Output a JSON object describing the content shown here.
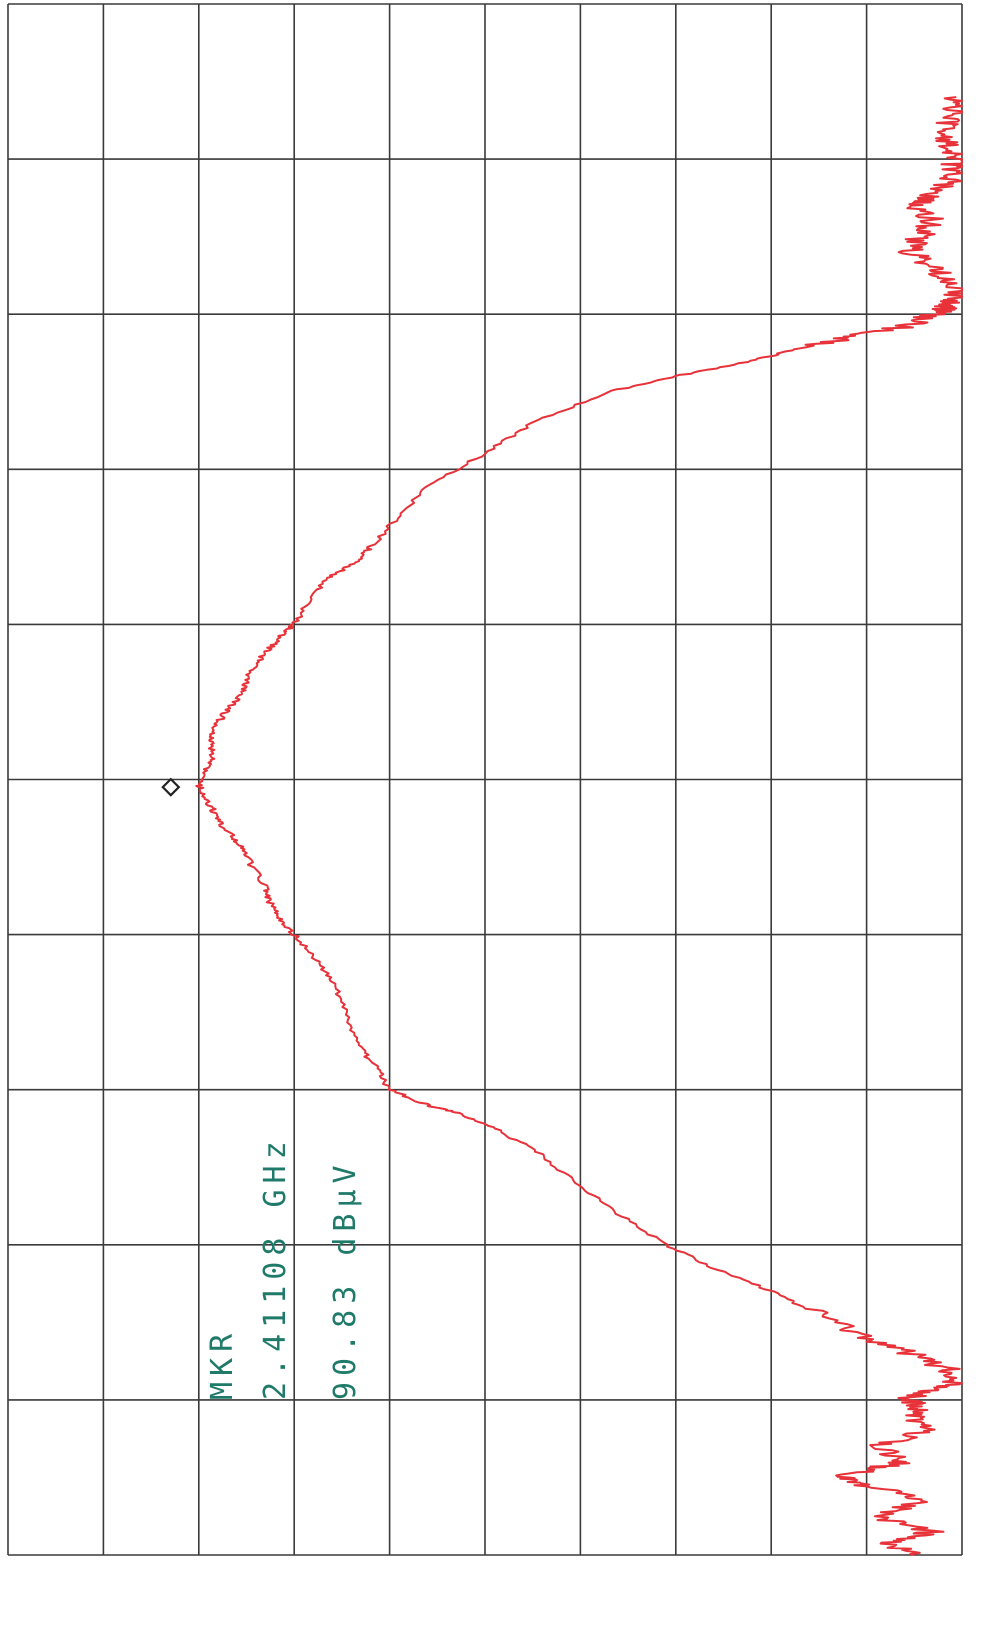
{
  "marker": {
    "label": "MKR",
    "frequency": "2.41108 GHz",
    "amplitude": "90.83 dBμV",
    "frequency_value_ghz": 2.41108,
    "amplitude_value_dbuv": 90.83
  },
  "colors": {
    "trace": "#e8323a",
    "grid": "#3a3a3a",
    "marker_text": "#1f7a6a",
    "marker_symbol": "#222222",
    "background": "#ffffff"
  },
  "chart_data": {
    "type": "line",
    "orientation": "rotated-90",
    "title": "",
    "xlabel": "",
    "ylabel": "",
    "grid": true,
    "grid_divisions": {
      "x": 10,
      "y": 10
    },
    "x_division_range": [
      0,
      10
    ],
    "y_division_range": [
      0,
      10
    ],
    "series": [
      {
        "name": "",
        "points": [
          [
            0.0,
            0.5
          ],
          [
            0.08,
            0.8
          ],
          [
            0.15,
            0.3
          ],
          [
            0.25,
            0.9
          ],
          [
            0.35,
            0.4
          ],
          [
            0.45,
            1.0
          ],
          [
            0.5,
            1.25
          ],
          [
            0.55,
            1.0
          ],
          [
            0.6,
            0.6
          ],
          [
            0.7,
            0.9
          ],
          [
            0.8,
            0.4
          ],
          [
            0.9,
            0.55
          ],
          [
            0.97,
            0.45
          ],
          [
            1.0,
            0.62
          ],
          [
            1.05,
            0.35
          ],
          [
            1.1,
            0.05
          ],
          [
            1.2,
            0.15
          ],
          [
            1.3,
            0.55
          ],
          [
            1.4,
            1.0
          ],
          [
            1.55,
            1.5
          ],
          [
            1.7,
            2.0
          ],
          [
            1.85,
            2.6
          ],
          [
            2.0,
            3.1
          ],
          [
            2.2,
            3.6
          ],
          [
            2.4,
            4.05
          ],
          [
            2.6,
            4.45
          ],
          [
            2.75,
            4.9
          ],
          [
            2.85,
            5.3
          ],
          [
            2.9,
            5.6
          ],
          [
            3.0,
            6.0
          ],
          [
            3.15,
            6.15
          ],
          [
            3.3,
            6.35
          ],
          [
            3.5,
            6.45
          ],
          [
            3.7,
            6.6
          ],
          [
            3.85,
            6.8
          ],
          [
            4.0,
            7.0
          ],
          [
            4.1,
            7.15
          ],
          [
            4.2,
            7.25
          ],
          [
            4.3,
            7.3
          ],
          [
            4.5,
            7.5
          ],
          [
            4.6,
            7.6
          ],
          [
            4.7,
            7.75
          ],
          [
            4.8,
            7.85
          ],
          [
            4.9,
            7.95
          ],
          [
            4.97,
            8.0
          ],
          [
            5.05,
            7.95
          ],
          [
            5.15,
            7.85
          ],
          [
            5.25,
            7.88
          ],
          [
            5.35,
            7.82
          ],
          [
            5.45,
            7.7
          ],
          [
            5.55,
            7.55
          ],
          [
            5.65,
            7.5
          ],
          [
            5.75,
            7.4
          ],
          [
            5.85,
            7.25
          ],
          [
            5.95,
            7.1
          ],
          [
            6.0,
            7.0
          ],
          [
            6.15,
            6.85
          ],
          [
            6.3,
            6.65
          ],
          [
            6.4,
            6.35
          ],
          [
            6.5,
            6.2
          ],
          [
            6.7,
            5.9
          ],
          [
            6.9,
            5.6
          ],
          [
            7.1,
            5.0
          ],
          [
            7.3,
            4.5
          ],
          [
            7.5,
            3.7
          ],
          [
            7.6,
            3.0
          ],
          [
            7.7,
            2.2
          ],
          [
            7.78,
            1.7
          ],
          [
            7.85,
            1.2
          ],
          [
            7.92,
            0.6
          ],
          [
            8.0,
            0.3
          ],
          [
            8.05,
            0.15
          ],
          [
            8.1,
            0.05
          ],
          [
            8.2,
            0.1
          ],
          [
            8.3,
            0.3
          ],
          [
            8.4,
            0.55
          ],
          [
            8.5,
            0.45
          ],
          [
            8.6,
            0.3
          ],
          [
            8.7,
            0.5
          ],
          [
            8.75,
            0.35
          ],
          [
            8.85,
            0.15
          ],
          [
            8.95,
            0.1
          ],
          [
            9.0,
            0.05
          ],
          [
            9.1,
            0.12
          ],
          [
            9.2,
            0.2
          ],
          [
            9.3,
            0.08
          ],
          [
            9.4,
            0.06
          ]
        ]
      }
    ],
    "marker_point": [
      4.97,
      8.0
    ]
  }
}
